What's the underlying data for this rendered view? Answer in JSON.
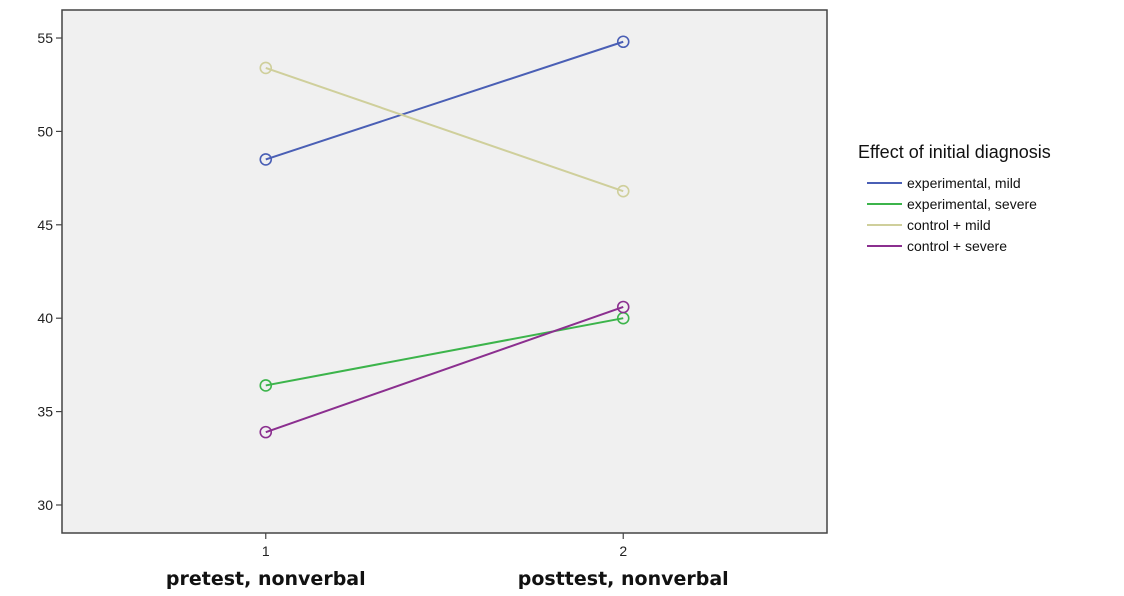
{
  "chart_data": {
    "type": "line",
    "title": "",
    "xlabel": "",
    "ylabel": "",
    "x": [
      1,
      2
    ],
    "x_tick_labels": [
      "1",
      "2"
    ],
    "categories": [
      "pretest, nonverbal",
      "posttest, nonverbal"
    ],
    "ylim": [
      28.5,
      56.5
    ],
    "xlim": [
      0.43,
      2.57
    ],
    "y_ticks": [
      30,
      35,
      40,
      45,
      50,
      55
    ],
    "grid": false,
    "plot_background": "#f0f0f0",
    "marker": "open-circle",
    "legend": {
      "title": "Effect of initial diagnosis",
      "placement": "right"
    },
    "series": [
      {
        "name": "experimental, mild",
        "color": "#4a5fb5",
        "values": [
          48.5,
          54.8
        ]
      },
      {
        "name": "experimental, severe",
        "color": "#3cb44b",
        "values": [
          36.4,
          40.0
        ]
      },
      {
        "name": "control + mild",
        "color": "#cfcf9b",
        "values": [
          53.4,
          46.8
        ]
      },
      {
        "name": "control + severe",
        "color": "#8b2f8f",
        "values": [
          33.9,
          40.6
        ]
      }
    ]
  }
}
